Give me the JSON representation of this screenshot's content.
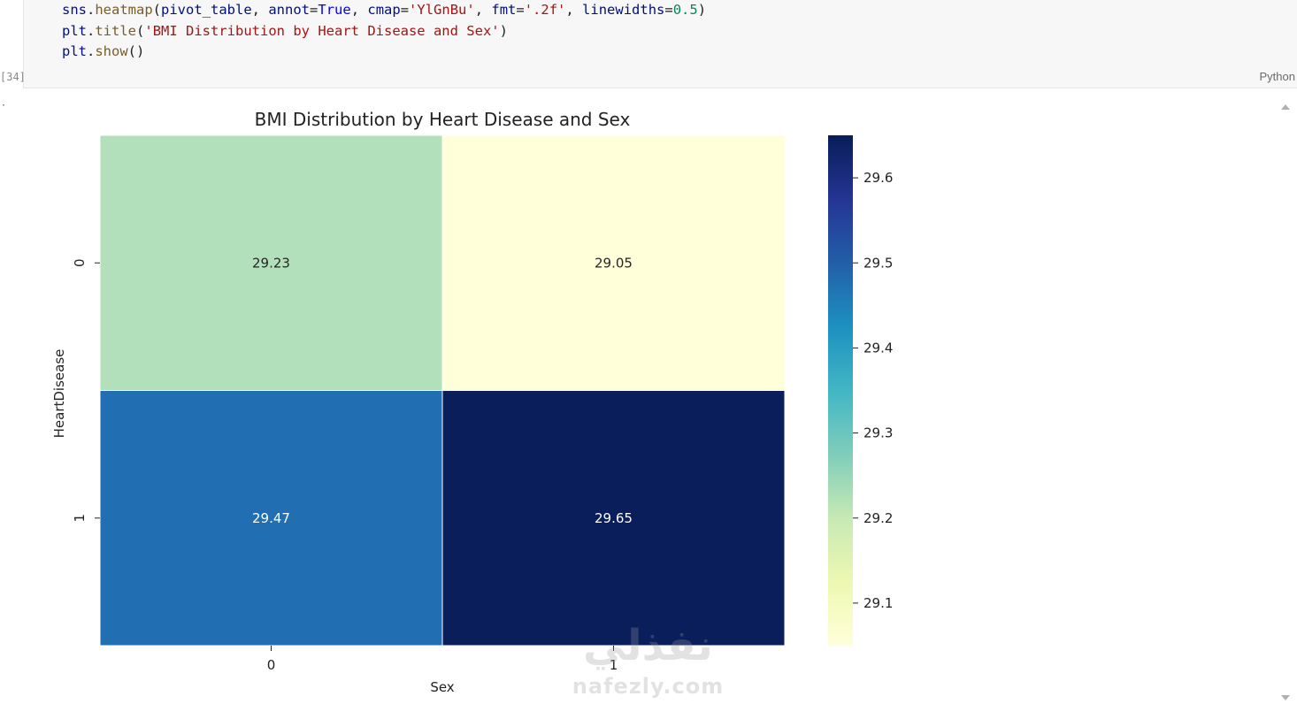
{
  "cell": {
    "execution_count": "[34]",
    "language": "Python",
    "code_lines": [
      [
        {
          "t": "sns",
          "c": "var"
        },
        {
          "t": ".",
          "c": "op"
        },
        {
          "t": "heatmap",
          "c": "fn"
        },
        {
          "t": "(",
          "c": "op"
        },
        {
          "t": "pivot_table",
          "c": "var"
        },
        {
          "t": ", ",
          "c": "op"
        },
        {
          "t": "annot",
          "c": "var"
        },
        {
          "t": "=",
          "c": "op"
        },
        {
          "t": "True",
          "c": "kw"
        },
        {
          "t": ", ",
          "c": "op"
        },
        {
          "t": "cmap",
          "c": "var"
        },
        {
          "t": "=",
          "c": "op"
        },
        {
          "t": "'YlGnBu'",
          "c": "str"
        },
        {
          "t": ", ",
          "c": "op"
        },
        {
          "t": "fmt",
          "c": "var"
        },
        {
          "t": "=",
          "c": "op"
        },
        {
          "t": "'.2f'",
          "c": "str"
        },
        {
          "t": ", ",
          "c": "op"
        },
        {
          "t": "linewidths",
          "c": "var"
        },
        {
          "t": "=",
          "c": "op"
        },
        {
          "t": "0.5",
          "c": "num"
        },
        {
          "t": ")",
          "c": "op"
        }
      ],
      [
        {
          "t": "plt",
          "c": "var"
        },
        {
          "t": ".",
          "c": "op"
        },
        {
          "t": "title",
          "c": "fn"
        },
        {
          "t": "(",
          "c": "op"
        },
        {
          "t": "'BMI Distribution by Heart Disease and Sex'",
          "c": "str"
        },
        {
          "t": ")",
          "c": "op"
        }
      ],
      [
        {
          "t": "plt",
          "c": "var"
        },
        {
          "t": ".",
          "c": "op"
        },
        {
          "t": "show",
          "c": "fn"
        },
        {
          "t": "()",
          "c": "op"
        }
      ]
    ]
  },
  "output": {
    "marker": "·"
  },
  "chart_data": {
    "type": "heatmap",
    "title": "BMI Distribution by Heart Disease and Sex",
    "xlabel": "Sex",
    "ylabel": "HeartDisease",
    "x_categories": [
      "0",
      "1"
    ],
    "y_categories": [
      "0",
      "1"
    ],
    "values": [
      [
        29.23,
        29.05
      ],
      [
        29.47,
        29.65
      ]
    ],
    "annotations": [
      [
        "29.23",
        "29.05"
      ],
      [
        "29.47",
        "29.65"
      ]
    ],
    "colormap": "YlGnBu",
    "cell_colors": [
      [
        "#b2e0bb",
        "#ffffd9"
      ],
      [
        "#216fb2",
        "#0b1e5c"
      ]
    ],
    "annotation_colors": [
      [
        "#262626",
        "#262626"
      ],
      [
        "#ffffff",
        "#ffffff"
      ]
    ],
    "colorbar": {
      "range": [
        29.05,
        29.65
      ],
      "ticks": [
        29.1,
        29.2,
        29.3,
        29.4,
        29.5,
        29.6
      ],
      "tick_labels": [
        "29.1",
        "29.2",
        "29.3",
        "29.4",
        "29.5",
        "29.6"
      ],
      "stops": [
        "#ffffd9",
        "#edf8b1",
        "#c7e9b4",
        "#7fcdbb",
        "#41b6c4",
        "#1d91c0",
        "#225ea8",
        "#253494",
        "#081d58"
      ],
      "location": "right"
    },
    "grid": false
  },
  "watermark": {
    "arabic": "نفذلي",
    "latin": "nafezly.com"
  }
}
